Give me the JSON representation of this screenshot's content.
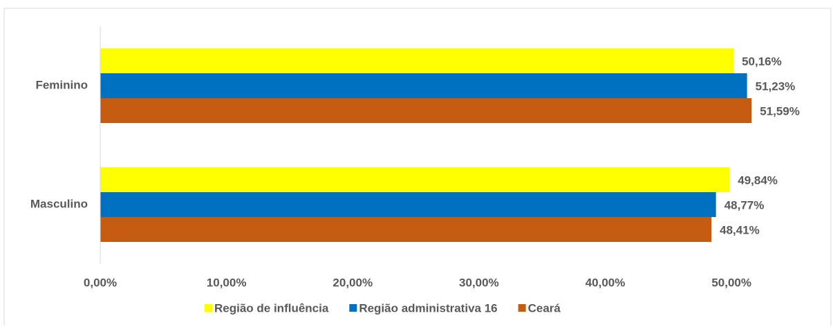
{
  "chart_data": {
    "type": "hbar",
    "categories": [
      "Feminino",
      "Masculino"
    ],
    "series": [
      {
        "name": "Região de influência",
        "color": "#ffff00",
        "values": [
          50.16,
          49.84
        ],
        "value_labels": [
          "50,16%",
          "49,84%"
        ]
      },
      {
        "name": "Região administrativa 16",
        "color": "#0070c0",
        "values": [
          51.23,
          48.77
        ],
        "value_labels": [
          "51,23%",
          "48,77%"
        ]
      },
      {
        "name": "Ceará",
        "color": "#c55a11",
        "values": [
          51.59,
          48.41
        ],
        "value_labels": [
          "51,59%",
          "48,41%"
        ]
      }
    ],
    "xlim": [
      0,
      57
    ],
    "xticks": [
      {
        "value": 0,
        "label": "0,00%"
      },
      {
        "value": 10,
        "label": "10,00%"
      },
      {
        "value": 20,
        "label": "20,00%"
      },
      {
        "value": 30,
        "label": "30,00%"
      },
      {
        "value": 40,
        "label": "40,00%"
      },
      {
        "value": 50,
        "label": "50,00%"
      }
    ],
    "legend": "bottom"
  }
}
